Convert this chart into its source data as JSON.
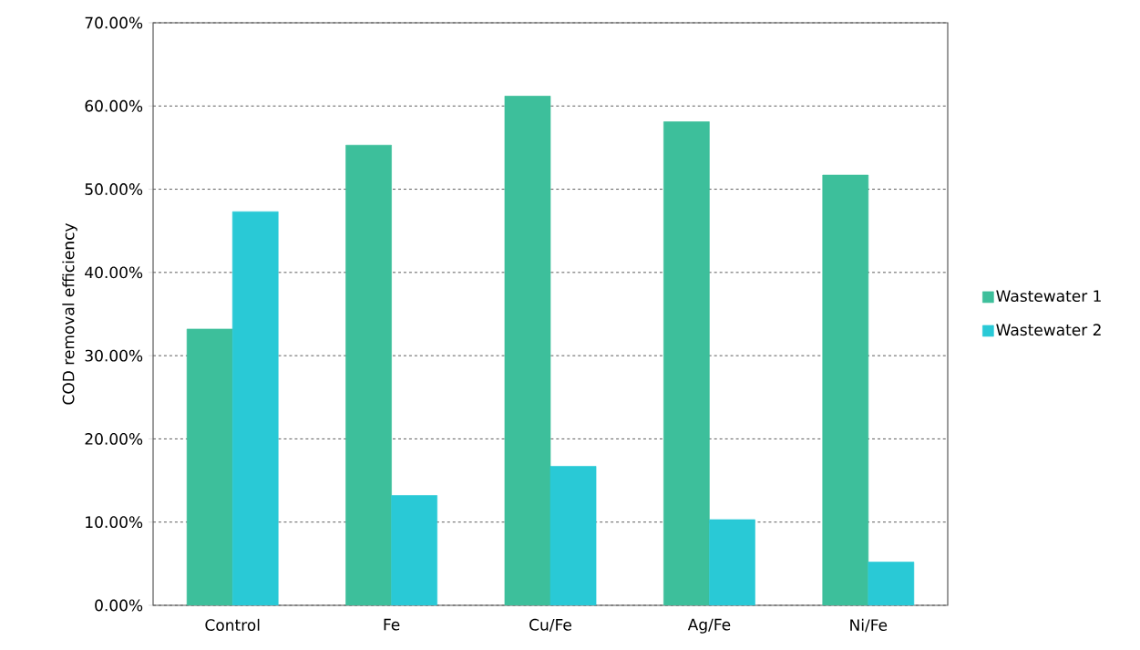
{
  "chart_data": {
    "type": "bar",
    "ylabel": "COD removal efficiency",
    "categories": [
      "Control",
      "Fe",
      "Cu/Fe",
      "Ag/Fe",
      "Ni/Fe"
    ],
    "series": [
      {
        "name": "Wastewater 1",
        "color": "#3dbf9b",
        "values": [
          33.2,
          55.3,
          61.2,
          58.1,
          51.7
        ]
      },
      {
        "name": "Wastewater 2",
        "color": "#29c9d6",
        "values": [
          47.3,
          13.2,
          16.7,
          10.3,
          5.2
        ]
      }
    ],
    "ylim": [
      0,
      70
    ],
    "yticks": [
      {
        "value": 0,
        "label": "0.00%"
      },
      {
        "value": 10,
        "label": "10.00%"
      },
      {
        "value": 20,
        "label": "20.00%"
      },
      {
        "value": 30,
        "label": "30.00%"
      },
      {
        "value": 40,
        "label": "40.00%"
      },
      {
        "value": 50,
        "label": "50.00%"
      },
      {
        "value": 60,
        "label": "60.00%"
      },
      {
        "value": 70,
        "label": "70.00%"
      }
    ],
    "grid": "y",
    "legend": "right"
  }
}
